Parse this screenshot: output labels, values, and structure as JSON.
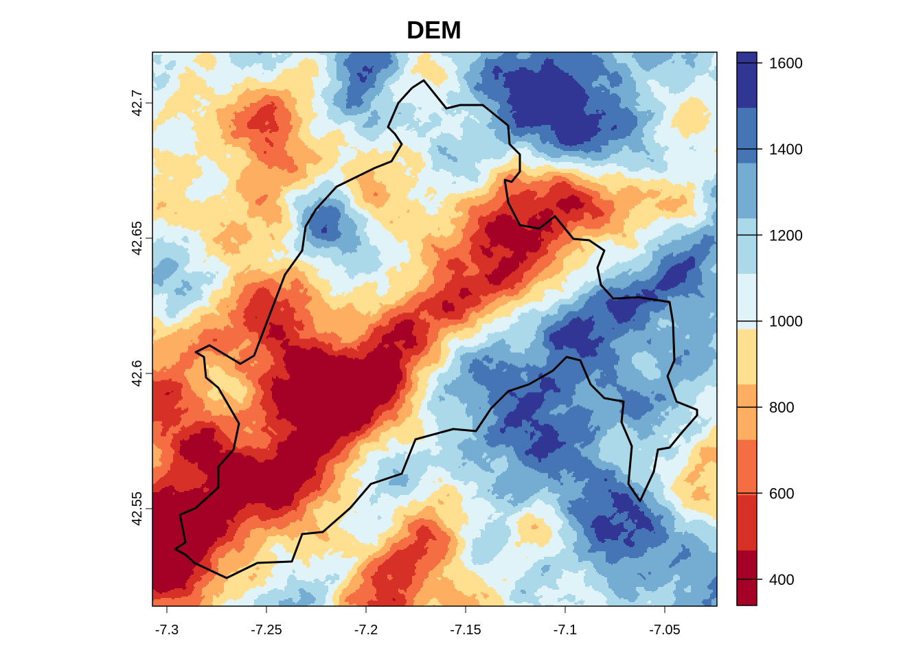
{
  "title": "DEM",
  "map": {
    "type": "raster",
    "variable": "elevation",
    "x_ticks": [
      "-7.3",
      "-7.25",
      "-7.2",
      "-7.15",
      "-7.1",
      "-7.05"
    ],
    "y_ticks": [
      "42.55",
      "42.6",
      "42.65",
      "42.7"
    ],
    "x_range": [
      -7.307,
      -7.024
    ],
    "y_range": [
      42.514,
      42.719
    ],
    "outline": "catchment boundary"
  },
  "legend": {
    "ticks": [
      "400",
      "600",
      "800",
      "1000",
      "1200",
      "1400",
      "1600"
    ],
    "range": [
      339,
      1625
    ],
    "classes": 10,
    "colors": [
      "#A50026",
      "#D73027",
      "#F46D43",
      "#FDAE61",
      "#FEE090",
      "#E0F3F8",
      "#ABD9E9",
      "#74ADD1",
      "#4575B4",
      "#313695"
    ]
  }
}
